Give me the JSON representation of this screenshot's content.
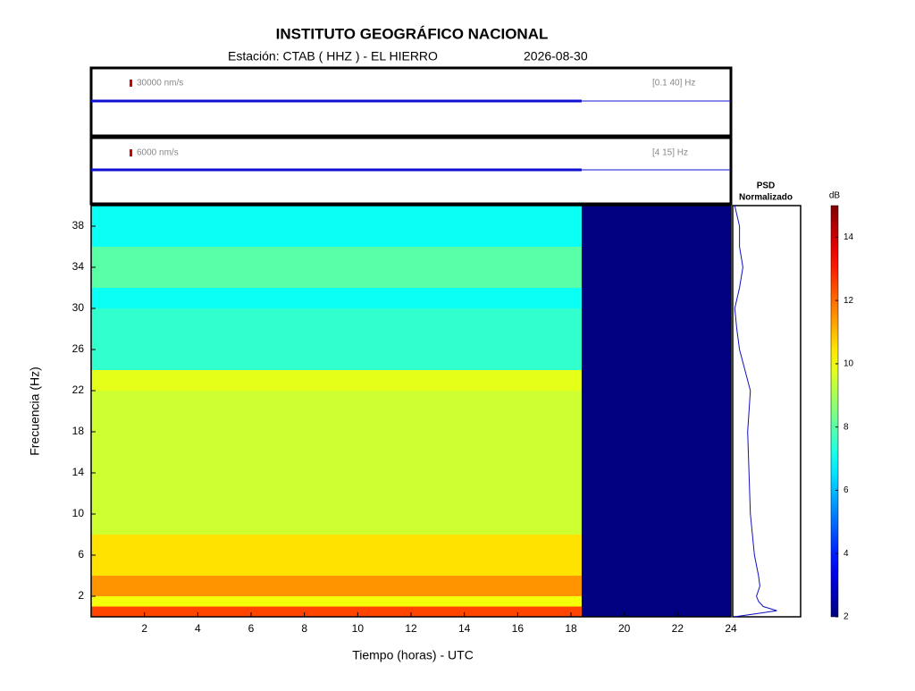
{
  "chart_data": {
    "type": "spectrogram",
    "title": "INSTITUTO GEOGRÁFICO NACIONAL",
    "subtitle": "Estación:  CTAB ( HHZ ) - EL HIERRO",
    "date": "2026-08-30",
    "traces": [
      {
        "scale_label": "30000 nm/s",
        "band_label": "[0.1 40] Hz",
        "color": "#1010d0"
      },
      {
        "scale_label": "6000 nm/s",
        "band_label": "[4 15] Hz",
        "color": "#1010d0"
      }
    ],
    "xlabel": "Tiempo (horas) - UTC",
    "ylabel": "Frecuencia  (Hz)",
    "xlim": [
      0,
      24
    ],
    "xticks": [
      2,
      4,
      6,
      8,
      10,
      12,
      14,
      16,
      18,
      20,
      22,
      24
    ],
    "ylim": [
      0,
      40
    ],
    "yticks": [
      2,
      6,
      10,
      14,
      18,
      22,
      26,
      30,
      34,
      38
    ],
    "time_bins": [
      0,
      18.4,
      24
    ],
    "freq_bins": [
      0,
      1,
      2,
      4,
      8,
      22,
      24,
      30,
      32,
      36,
      40
    ],
    "z": [
      [
        12.5,
        2
      ],
      [
        10,
        2
      ],
      [
        11.5,
        2
      ],
      [
        10.5,
        2
      ],
      [
        9.5,
        2
      ],
      [
        9.8,
        2
      ],
      [
        7.5,
        2
      ],
      [
        7,
        2
      ],
      [
        8,
        2
      ],
      [
        7,
        2
      ]
    ],
    "psd_title": "PSD",
    "psd_subtitle": "Normalizado",
    "psd": {
      "freq": [
        0,
        0.3,
        0.6,
        1,
        1.5,
        2,
        3,
        4,
        6,
        10,
        14,
        18,
        22,
        24,
        26,
        28,
        30,
        32,
        34,
        36,
        38,
        40
      ],
      "values": [
        0.02,
        0.35,
        0.65,
        0.45,
        0.38,
        0.35,
        0.4,
        0.38,
        0.32,
        0.26,
        0.24,
        0.22,
        0.26,
        0.18,
        0.1,
        0.06,
        0.03,
        0.1,
        0.15,
        0.1,
        0.1,
        0.03
      ],
      "color": "#1010c0",
      "xlim": [
        0,
        1
      ]
    },
    "colorbar_label": "dB",
    "clim": [
      2,
      15
    ],
    "cticks": [
      2,
      4,
      6,
      8,
      10,
      12,
      14
    ]
  }
}
